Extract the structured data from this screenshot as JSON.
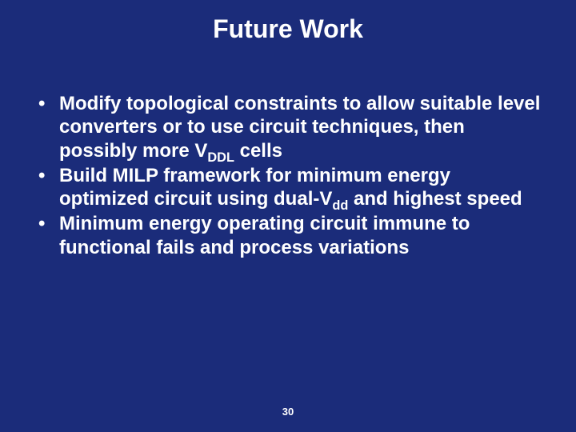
{
  "slide": {
    "background_color": "#1b2c7a",
    "text_color": "#ffffff",
    "title": "Future Work",
    "title_fontsize": 32,
    "title_fontweight": "bold",
    "body_fontsize": 24,
    "body_fontweight": "bold",
    "bullets": [
      {
        "pre": "Modify topological constraints to allow suitable level converters or to use circuit techniques, then possibly more V",
        "sub": "DDL",
        "post": " cells"
      },
      {
        "pre": "Build MILP framework for minimum energy optimized circuit using dual-V",
        "sub": "dd",
        "post": "  and highest speed"
      },
      {
        "pre": "Minimum energy operating circuit immune to functional fails and process variations",
        "sub": "",
        "post": ""
      }
    ],
    "page_number": "30",
    "page_number_fontsize": 13
  }
}
